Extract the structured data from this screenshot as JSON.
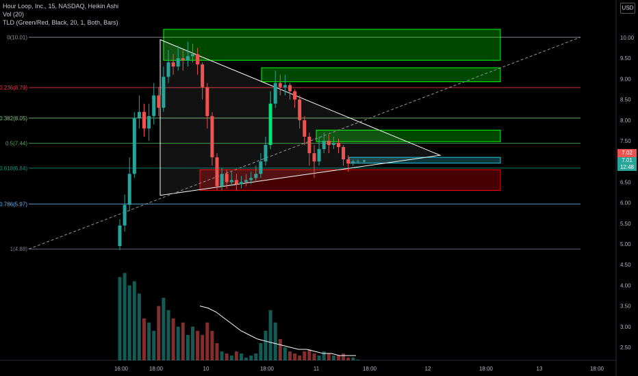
{
  "legend": {
    "symbol_line": "Hour Loop, Inc., 15, NASDAQ, Heikin Ashi",
    "volume_line": "Vol (20)",
    "indicator_line": "TLD (Green/Red, Black, 20, 1, Both, Bars)"
  },
  "currency": "USD",
  "price_badges": {
    "last": "7.02",
    "ha": "7.01",
    "countdown": "12:48",
    "last_color": "#ef5350",
    "ha_color": "#26a69a"
  },
  "colors": {
    "up": "#26a69a",
    "down": "#ef5350",
    "bright_up": "#00e676",
    "supply_zone": "#00ff00",
    "demand_zone": "#ff0000",
    "triangle": "#ffffff"
  },
  "chart_data": {
    "type": "candlestick",
    "style": "Heikin Ashi",
    "interval": "15",
    "y_ticks": [
      "10.00",
      "9.50",
      "9.00",
      "8.50",
      "8.00",
      "7.50",
      "7.00",
      "6.50",
      "6.00",
      "5.50",
      "5.00",
      "4.50",
      "4.00",
      "3.50",
      "3.00",
      "2.50"
    ],
    "x_ticks": [
      "16:00",
      "18:00",
      "10",
      "18:00",
      "11",
      "18:00",
      "12",
      "18:00",
      "13",
      "18:00"
    ],
    "ylim_price": [
      4.88,
      10.01
    ],
    "fibonacci": [
      {
        "label": "0(10.01)",
        "value": 10.01,
        "color": "#9598a1"
      },
      {
        "label": "0.236(8.79)",
        "value": 8.79,
        "color": "#f23645"
      },
      {
        "label": "0.382(8.05)",
        "value": 8.05,
        "color": "#81c784"
      },
      {
        "label": "0.5(7.44)",
        "value": 7.44,
        "color": "#4caf50"
      },
      {
        "label": "0.618(6.84)",
        "value": 6.84,
        "color": "#089981"
      },
      {
        "label": "0.786(5.97)",
        "value": 5.97,
        "color": "#64b5f6"
      },
      {
        "label": "1(4.88)",
        "value": 4.88,
        "color": "#787b86"
      }
    ],
    "candles": [
      [
        4.95,
        5.45,
        5.6,
        4.85
      ],
      [
        5.45,
        5.95,
        6.2,
        5.3
      ],
      [
        5.95,
        6.7,
        7.1,
        5.8
      ],
      [
        6.7,
        8.05,
        8.2,
        6.6
      ],
      [
        8.05,
        8.2,
        8.6,
        7.8
      ],
      [
        8.2,
        7.8,
        8.4,
        7.6
      ],
      [
        7.8,
        8.1,
        8.4,
        7.5
      ],
      [
        8.1,
        8.6,
        8.9,
        7.9
      ],
      [
        8.6,
        8.3,
        8.8,
        8.1
      ],
      [
        8.3,
        9.05,
        9.3,
        8.2
      ],
      [
        9.05,
        9.4,
        9.7,
        8.9
      ],
      [
        9.4,
        9.3,
        9.6,
        9.1
      ],
      [
        9.3,
        9.5,
        9.8,
        9.2
      ],
      [
        9.5,
        9.45,
        9.7,
        9.2
      ],
      [
        9.45,
        9.55,
        9.9,
        9.3
      ],
      [
        9.55,
        9.6,
        9.85,
        9.4
      ],
      [
        9.6,
        9.35,
        9.75,
        9.1
      ],
      [
        9.35,
        8.8,
        9.4,
        8.5
      ],
      [
        8.8,
        8.1,
        8.9,
        7.8
      ],
      [
        8.1,
        7.1,
        8.2,
        6.9
      ],
      [
        7.1,
        6.4,
        7.2,
        6.3
      ],
      [
        6.4,
        6.7,
        6.85,
        6.3
      ],
      [
        6.7,
        6.5,
        6.8,
        6.35
      ],
      [
        6.5,
        6.55,
        6.75,
        6.4
      ],
      [
        6.55,
        6.45,
        6.7,
        6.3
      ],
      [
        6.45,
        6.5,
        6.65,
        6.35
      ],
      [
        6.5,
        6.55,
        6.7,
        6.4
      ],
      [
        6.55,
        6.6,
        6.75,
        6.45
      ],
      [
        6.6,
        6.7,
        6.9,
        6.5
      ],
      [
        6.7,
        7.0,
        7.2,
        6.6
      ],
      [
        7.0,
        7.4,
        7.6,
        6.9
      ],
      [
        7.4,
        8.4,
        8.7,
        7.3
      ],
      [
        8.4,
        8.9,
        9.2,
        8.3
      ],
      [
        8.9,
        8.8,
        9.1,
        8.6
      ],
      [
        8.8,
        8.85,
        9.1,
        8.6
      ],
      [
        8.85,
        8.7,
        8.9,
        8.5
      ],
      [
        8.7,
        8.5,
        8.75,
        8.3
      ],
      [
        8.5,
        8.0,
        8.6,
        7.8
      ],
      [
        8.0,
        7.6,
        8.1,
        7.4
      ],
      [
        7.6,
        7.2,
        7.7,
        6.9
      ],
      [
        7.2,
        7.0,
        7.4,
        6.6
      ],
      [
        7.0,
        7.3,
        7.6,
        6.9
      ],
      [
        7.3,
        7.5,
        7.7,
        7.2
      ],
      [
        7.5,
        7.4,
        7.65,
        7.2
      ],
      [
        7.4,
        7.45,
        7.6,
        7.3
      ],
      [
        7.45,
        7.35,
        7.55,
        7.2
      ],
      [
        7.35,
        7.05,
        7.4,
        6.9
      ],
      [
        7.05,
        6.95,
        7.15,
        6.75
      ],
      [
        6.95,
        7.0,
        7.05,
        6.9
      ],
      [
        7.0,
        7.01,
        7.05,
        6.95
      ]
    ],
    "volume": [
      4.2,
      4.3,
      4.0,
      4.1,
      3.8,
      3.2,
      3.1,
      2.9,
      3.5,
      3.7,
      3.4,
      3.2,
      3.0,
      3.1,
      2.8,
      3.0,
      2.9,
      2.8,
      3.1,
      2.9,
      2.6,
      2.4,
      2.35,
      2.3,
      2.4,
      2.35,
      2.25,
      2.3,
      2.35,
      2.6,
      2.9,
      3.4,
      3.1,
      2.7,
      2.5,
      2.4,
      2.35,
      2.3,
      2.4,
      2.45,
      2.35,
      2.3,
      2.4,
      2.35,
      2.3,
      2.3,
      2.35,
      2.25,
      2.25,
      2.2
    ],
    "volume_ma": [
      3.5,
      3.45,
      3.35,
      3.2,
      3.05,
      2.9,
      2.8,
      2.7,
      2.65,
      2.6,
      2.55,
      2.5,
      2.45,
      2.45,
      2.4,
      2.35,
      2.35,
      2.3,
      2.3,
      2.3
    ]
  }
}
